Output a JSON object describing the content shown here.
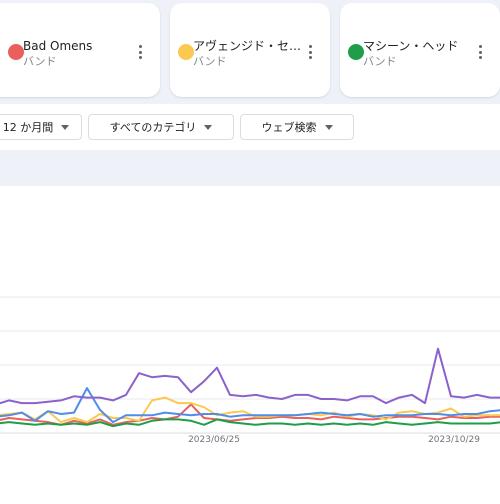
{
  "terms": [
    {
      "name": "Bad Omens",
      "type": "バンド",
      "color": "#e8615a"
    },
    {
      "name": "アヴェンジド・セ…",
      "type": "バンド",
      "color": "#fbc850"
    },
    {
      "name": "マシーン・ヘッド",
      "type": "バンド",
      "color": "#1e9e48"
    }
  ],
  "filters": {
    "period": "12 か月間",
    "category": "すべてのカテゴリ",
    "search_type": "ウェブ検索"
  },
  "chart_data": {
    "type": "line",
    "x_tick_labels": [
      "2023/06/25",
      "2023/10/29"
    ],
    "ylim": [
      0,
      100
    ],
    "grid": true,
    "series": [
      {
        "color": "#8b61cc",
        "values": [
          21,
          24,
          22,
          22,
          23,
          24,
          27,
          26,
          26,
          24,
          28,
          44,
          41,
          42,
          41,
          30,
          38,
          48,
          28,
          27,
          28,
          26,
          25,
          28,
          28,
          25,
          25,
          24,
          27,
          27,
          22,
          26,
          28,
          22,
          62,
          27,
          26,
          28,
          26,
          26
        ]
      },
      {
        "color": "#4f8de8",
        "values": [
          12,
          13,
          15,
          9,
          16,
          14,
          15,
          33,
          17,
          8,
          13,
          13,
          13,
          15,
          14,
          13,
          14,
          14,
          12,
          13,
          13,
          13,
          13,
          13,
          14,
          15,
          14,
          13,
          14,
          12,
          13,
          13,
          13,
          14,
          14,
          13,
          14,
          14,
          16,
          17
        ]
      },
      {
        "color": "#fbc850",
        "values": [
          13,
          14,
          15,
          10,
          16,
          8,
          11,
          8,
          14,
          11,
          11,
          9,
          24,
          26,
          22,
          22,
          19,
          13,
          15,
          16,
          12,
          12,
          13,
          13,
          14,
          13,
          15,
          12,
          14,
          13,
          10,
          15,
          16,
          14,
          15,
          18,
          12,
          13,
          13,
          13
        ]
      },
      {
        "color": "#e8615a",
        "values": [
          9,
          11,
          10,
          9,
          8,
          6,
          9,
          7,
          10,
          6,
          8,
          9,
          11,
          10,
          12,
          21,
          11,
          10,
          9,
          10,
          11,
          11,
          12,
          11,
          11,
          10,
          12,
          11,
          10,
          10,
          11,
          12,
          12,
          11,
          10,
          12,
          11,
          11,
          12,
          12
        ]
      },
      {
        "color": "#1e9e48",
        "values": [
          7,
          8,
          7,
          6,
          7,
          6,
          7,
          6,
          8,
          5,
          7,
          6,
          9,
          10,
          10,
          9,
          6,
          10,
          8,
          7,
          6,
          7,
          7,
          6,
          7,
          6,
          7,
          6,
          7,
          6,
          8,
          7,
          6,
          7,
          8,
          7,
          7,
          7,
          7,
          8
        ]
      }
    ]
  }
}
